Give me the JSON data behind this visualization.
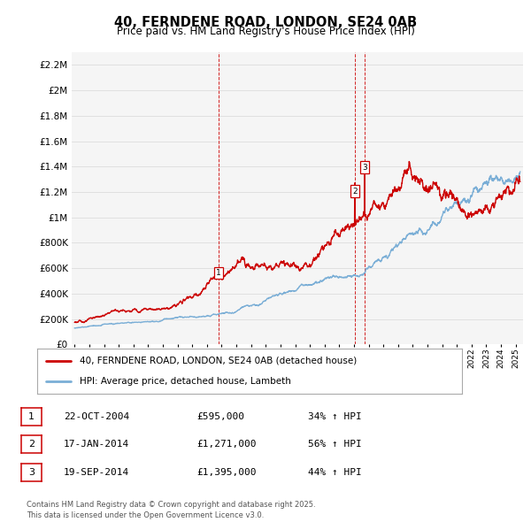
{
  "title": "40, FERNDENE ROAD, LONDON, SE24 0AB",
  "subtitle": "Price paid vs. HM Land Registry's House Price Index (HPI)",
  "legend_red": "40, FERNDENE ROAD, LONDON, SE24 0AB (detached house)",
  "legend_blue": "HPI: Average price, detached house, Lambeth",
  "footer": "Contains HM Land Registry data © Crown copyright and database right 2025.\nThis data is licensed under the Open Government Licence v3.0.",
  "transactions": [
    {
      "num": 1,
      "date": "22-OCT-2004",
      "price": "£595,000",
      "hpi": "34% ↑ HPI",
      "year": 2004.8
    },
    {
      "num": 2,
      "date": "17-JAN-2014",
      "price": "£1,271,000",
      "hpi": "56% ↑ HPI",
      "year": 2014.05
    },
    {
      "num": 3,
      "date": "19-SEP-2014",
      "price": "£1,395,000",
      "hpi": "44% ↑ HPI",
      "year": 2014.72
    }
  ],
  "ylim": [
    0,
    2300000
  ],
  "xlim_start": 1994.8,
  "xlim_end": 2025.5,
  "red_color": "#cc0000",
  "blue_color": "#7aaed6",
  "grid_color": "#dddddd",
  "vline_color": "#cc0000",
  "bg_color": "#ffffff",
  "plot_bg": "#f5f5f5"
}
